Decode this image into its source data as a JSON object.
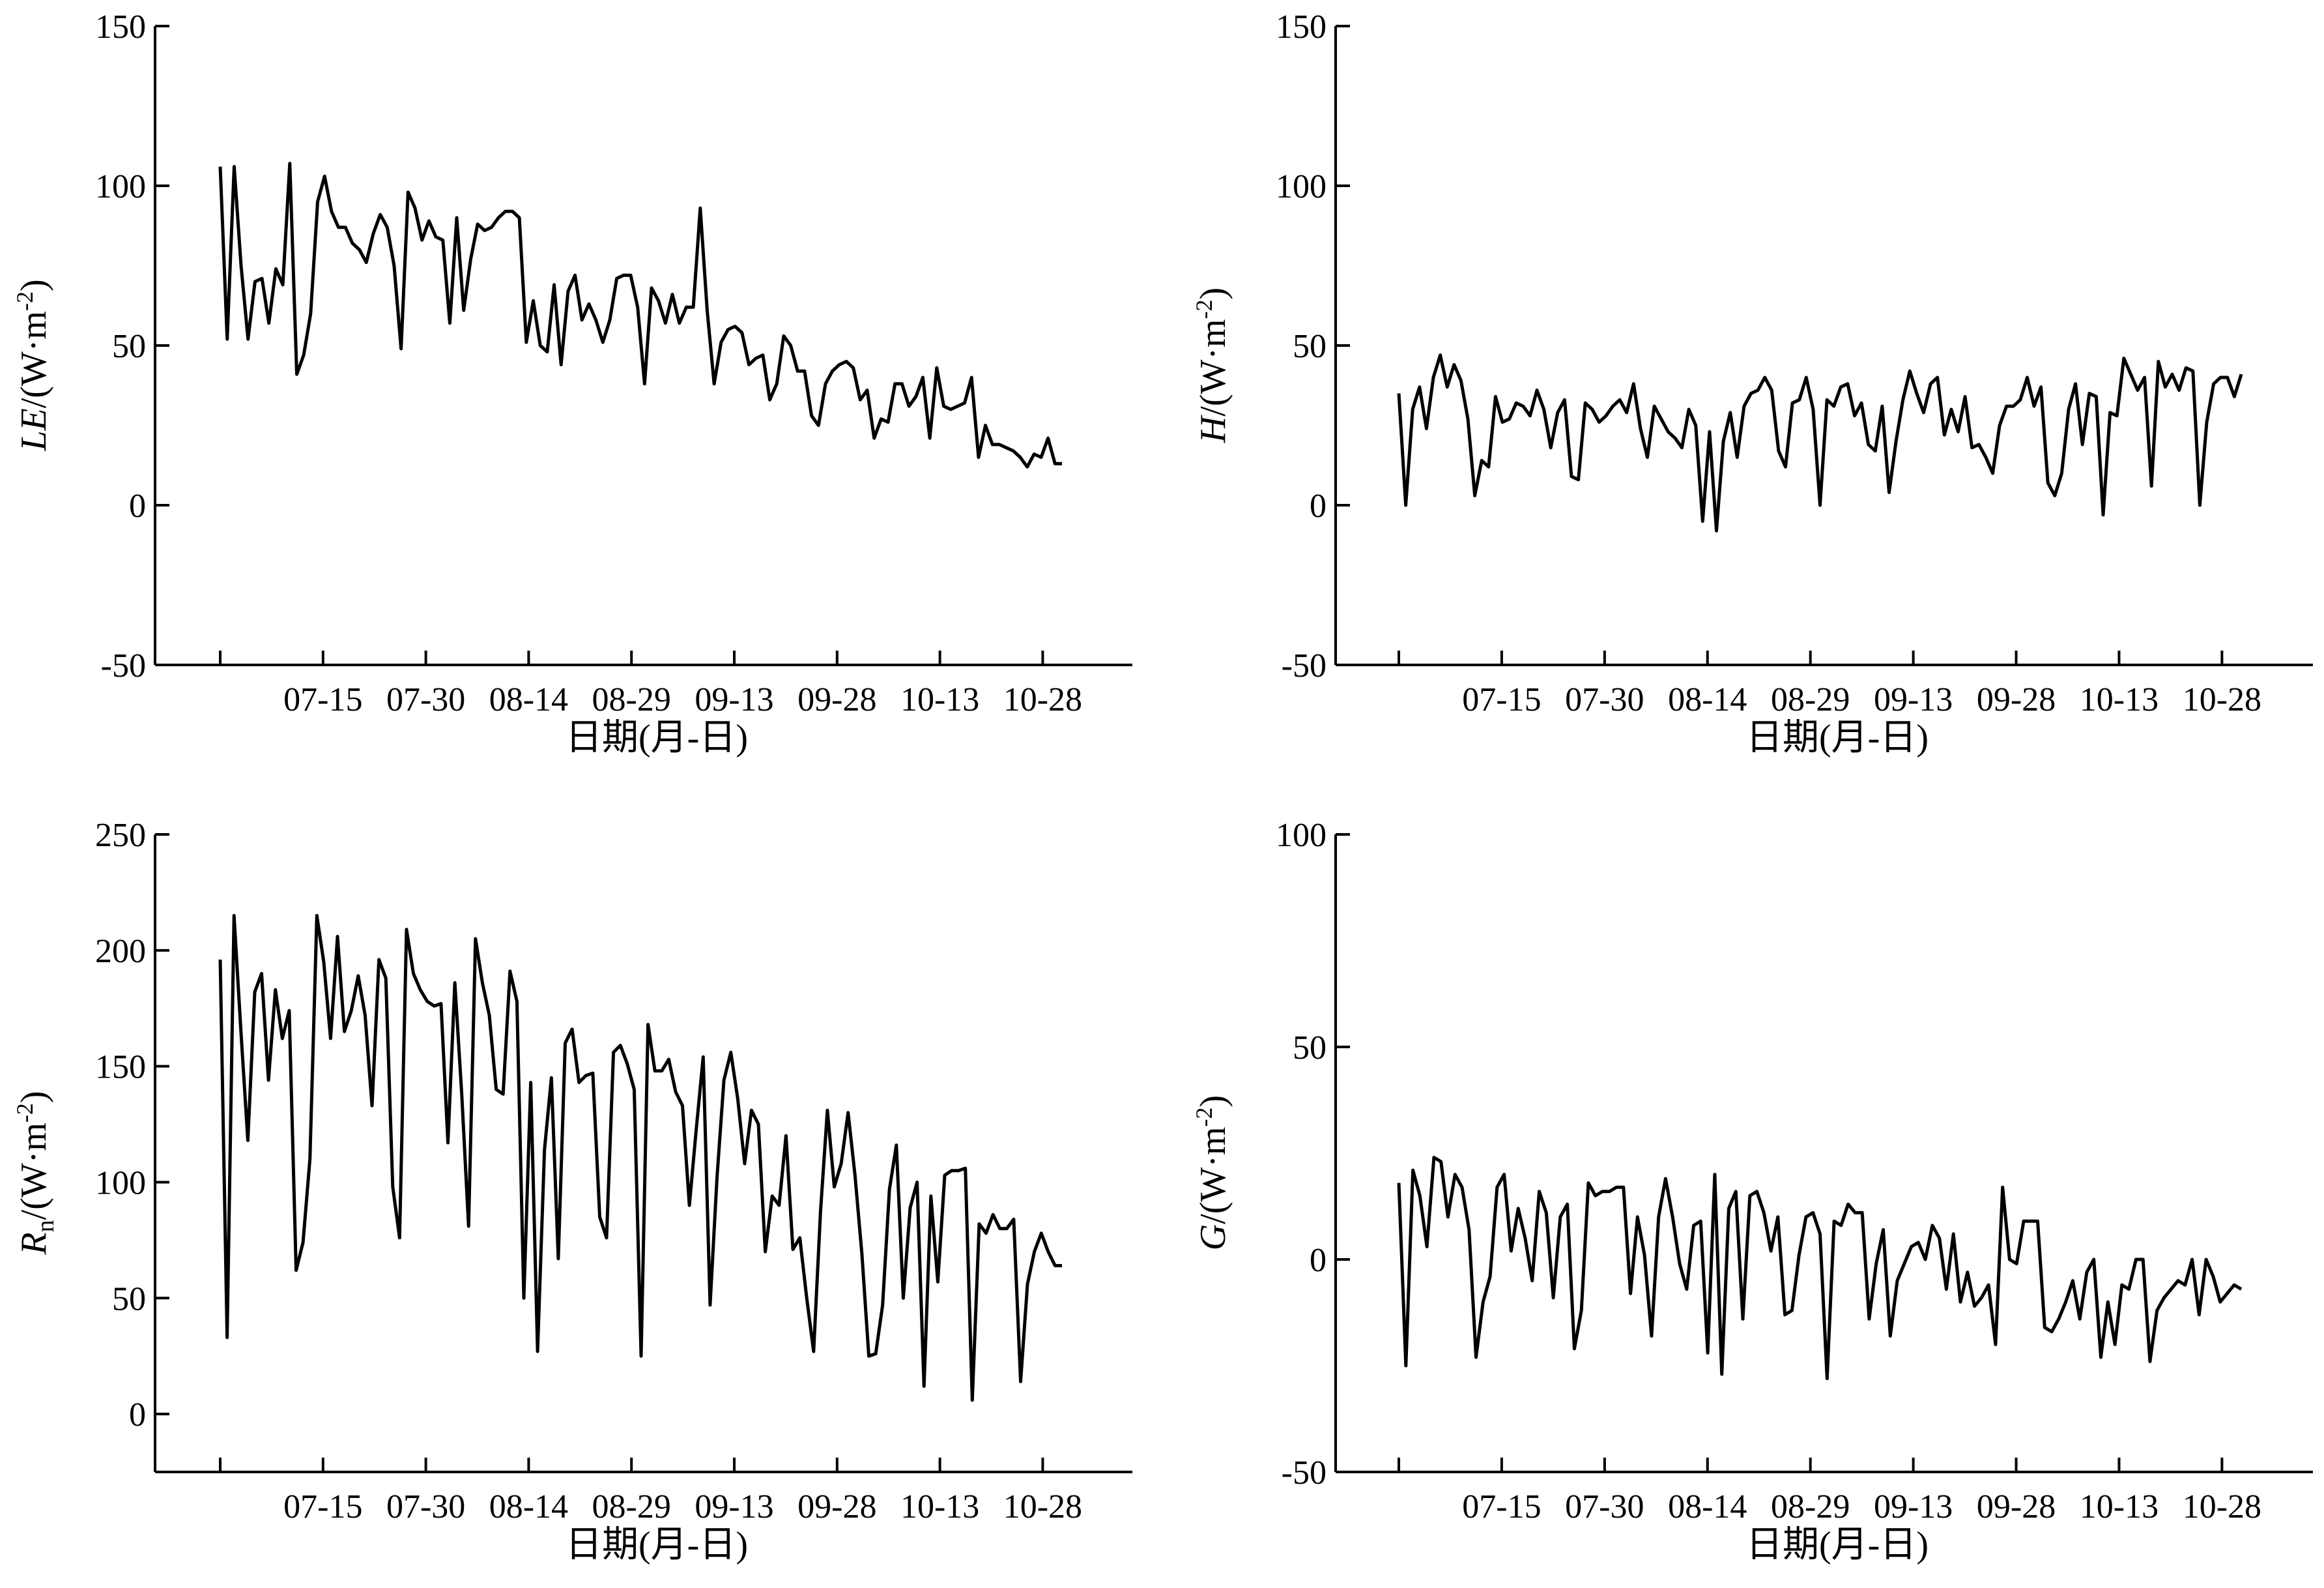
{
  "chart_data": [
    {
      "id": "LE",
      "type": "line",
      "xlabel": "日期(月-日)",
      "ylabel": {
        "symbol": "LE",
        "unit": "/(W·m",
        "exp": "-2",
        "close": ")"
      },
      "ylim": [
        -50,
        150
      ],
      "yticks": [
        "-50",
        "0",
        "50",
        "100",
        "150"
      ],
      "xlim": [
        0,
        131
      ],
      "xticks": [
        0,
        16,
        32,
        48,
        64,
        80,
        96,
        112,
        128
      ],
      "xticklabels": [
        "",
        "07-15",
        "07-30",
        "08-14",
        "08-29",
        "09-13",
        "09-28",
        "10-13",
        "10-28"
      ],
      "grid": false,
      "values": [
        106,
        52,
        106,
        75,
        52,
        70,
        71,
        57,
        74,
        69,
        107,
        41,
        47,
        60,
        95,
        103,
        92,
        87,
        87,
        82,
        80,
        76,
        85,
        91,
        87,
        75,
        49,
        98,
        93,
        83,
        89,
        84,
        83,
        57,
        90,
        61,
        77,
        88,
        86,
        87,
        90,
        92,
        92,
        90,
        51,
        64,
        50,
        48,
        69,
        44,
        67,
        72,
        58,
        63,
        58,
        51,
        58,
        71,
        72,
        72,
        62,
        38,
        68,
        64,
        57,
        66,
        57,
        62,
        62,
        93,
        61,
        38,
        51,
        55,
        56,
        54,
        44,
        46,
        47,
        33,
        38,
        53,
        50,
        42,
        42,
        28,
        25,
        38,
        42,
        44,
        45,
        43,
        33,
        36,
        21,
        27,
        26,
        38,
        38,
        31,
        34,
        40,
        21,
        43,
        31,
        30,
        31,
        32,
        40,
        15,
        25,
        19,
        19,
        18,
        17,
        15,
        12,
        16,
        15,
        21,
        13,
        13
      ]
    },
    {
      "id": "H",
      "type": "line",
      "xlabel": "日期(月-日)",
      "ylabel": {
        "symbol": "H",
        "unit": "/(W·m",
        "exp": "-2",
        "close": ")"
      },
      "ylim": [
        -50,
        150
      ],
      "yticks": [
        "-50",
        "0",
        "50",
        "100",
        "150"
      ],
      "xlim": [
        0,
        131
      ],
      "xticks": [
        0,
        16,
        32,
        48,
        64,
        80,
        96,
        112,
        128
      ],
      "xticklabels": [
        "",
        "07-15",
        "07-30",
        "08-14",
        "08-29",
        "09-13",
        "09-28",
        "10-13",
        "10-28"
      ],
      "grid": false,
      "values": [
        35,
        0,
        30,
        37,
        24,
        40,
        47,
        37,
        44,
        39,
        27,
        3,
        14,
        12,
        34,
        26,
        27,
        32,
        31,
        28,
        36,
        30,
        18,
        29,
        33,
        9,
        8,
        32,
        30,
        26,
        28,
        31,
        33,
        29,
        38,
        24,
        15,
        31,
        27,
        23,
        21,
        18,
        30,
        25,
        -5,
        23,
        -8,
        20,
        29,
        15,
        31,
        35,
        36,
        40,
        36,
        17,
        12,
        32,
        33,
        40,
        30,
        0,
        33,
        31,
        37,
        38,
        28,
        32,
        19,
        17,
        31,
        4,
        20,
        33,
        42,
        35,
        29,
        38,
        40,
        22,
        30,
        23,
        34,
        18,
        19,
        15,
        10,
        25,
        31,
        31,
        33,
        40,
        31,
        37,
        7,
        3,
        10,
        30,
        38,
        19,
        35,
        34,
        -3,
        29,
        28,
        46,
        41,
        36,
        40,
        6,
        45,
        37,
        41,
        36,
        43,
        42,
        0,
        26,
        38,
        40,
        40,
        34,
        41
      ]
    },
    {
      "id": "Rn",
      "type": "line",
      "xlabel": "日期(月-日)",
      "ylabel": {
        "symbol": "R",
        "sub": "n",
        "unit": "/(W·m",
        "exp": "-2",
        "close": ")"
      },
      "ylim": [
        -25,
        250
      ],
      "yticks": [
        "0",
        "50",
        "100",
        "150",
        "200",
        "250"
      ],
      "xlim": [
        0,
        131
      ],
      "xticks": [
        0,
        16,
        32,
        48,
        64,
        80,
        96,
        112,
        128
      ],
      "xticklabels": [
        "",
        "07-15",
        "07-30",
        "08-14",
        "08-29",
        "09-13",
        "09-28",
        "10-13",
        "10-28"
      ],
      "grid": false,
      "values": [
        196,
        33,
        215,
        165,
        118,
        182,
        190,
        144,
        183,
        162,
        174,
        62,
        74,
        110,
        215,
        195,
        162,
        206,
        165,
        174,
        189,
        172,
        133,
        196,
        188,
        98,
        76,
        209,
        190,
        183,
        178,
        176,
        177,
        117,
        186,
        138,
        81,
        205,
        186,
        172,
        140,
        138,
        191,
        178,
        50,
        143,
        27,
        114,
        145,
        67,
        160,
        166,
        143,
        146,
        147,
        85,
        76,
        156,
        159,
        151,
        140,
        25,
        168,
        148,
        148,
        153,
        139,
        133,
        90,
        123,
        154,
        47,
        102,
        144,
        156,
        136,
        108,
        131,
        125,
        70,
        94,
        90,
        120,
        71,
        76,
        50,
        27,
        87,
        131,
        98,
        108,
        130,
        103,
        69,
        25,
        26,
        47,
        97,
        116,
        50,
        89,
        100,
        12,
        94,
        57,
        103,
        105,
        105,
        106,
        6,
        82,
        78,
        86,
        80,
        80,
        84,
        14,
        56,
        70,
        78,
        70,
        64,
        64
      ]
    },
    {
      "id": "G",
      "type": "line",
      "xlabel": "日期(月-日)",
      "ylabel": {
        "symbol": "G",
        "unit": "/(W·m",
        "exp": "-2",
        "close": ")"
      },
      "ylim": [
        -50,
        100
      ],
      "yticks": [
        "-50",
        "0",
        "50",
        "100"
      ],
      "xlim": [
        0,
        131
      ],
      "xticks": [
        0,
        16,
        32,
        48,
        64,
        80,
        96,
        112,
        128
      ],
      "xticklabels": [
        "",
        "07-15",
        "07-30",
        "08-14",
        "08-29",
        "09-13",
        "09-28",
        "10-13",
        "10-28"
      ],
      "grid": false,
      "values": [
        18,
        -25,
        21,
        15,
        3,
        24,
        23,
        10,
        20,
        17,
        7,
        -23,
        -10,
        -4,
        17,
        20,
        2,
        12,
        5,
        -5,
        16,
        11,
        -9,
        10,
        13,
        -21,
        -12,
        18,
        15,
        16,
        16,
        17,
        17,
        -8,
        10,
        1,
        -18,
        10,
        19,
        10,
        -1,
        -7,
        8,
        9,
        -22,
        20,
        -27,
        12,
        16,
        -14,
        15,
        16,
        11,
        2,
        10,
        -13,
        -12,
        1,
        10,
        11,
        6,
        -28,
        9,
        8,
        13,
        11,
        11,
        -14,
        -1,
        7,
        -18,
        -5,
        -1,
        3,
        4,
        0,
        8,
        5,
        -7,
        6,
        -10,
        -3,
        -11,
        -9,
        -6,
        -20,
        17,
        0,
        -1,
        9,
        9,
        9,
        -16,
        -17,
        -14,
        -10,
        -5,
        -14,
        -3,
        0,
        -23,
        -10,
        -20,
        -6,
        -7,
        0,
        0,
        -24,
        -12,
        -9,
        -7,
        -5,
        -6,
        0,
        -13,
        0,
        -4,
        -10,
        -8,
        -6,
        -7
      ]
    }
  ]
}
